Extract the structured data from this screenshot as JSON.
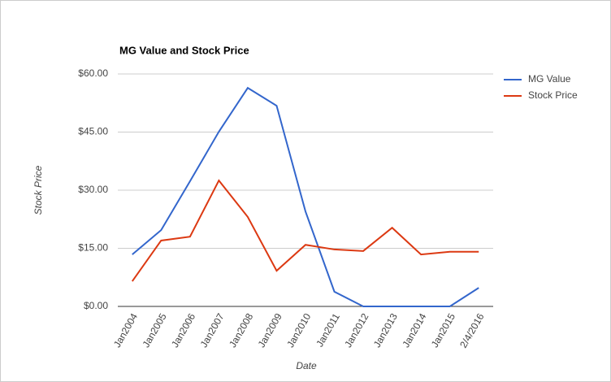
{
  "chart_data": {
    "type": "line",
    "title": "MG Value and Stock Price",
    "x_label": "Date",
    "y_label": "Stock Price",
    "categories": [
      "Jan2004",
      "Jan2005",
      "Jan2006",
      "Jan2007",
      "Jan2008",
      "Jan2009",
      "Jan2010",
      "Jan2011",
      "Jan2012",
      "Jan2013",
      "Jan2014",
      "Jan2015",
      "2/4/2016"
    ],
    "series": [
      {
        "name": "MG Value",
        "color": "#3366cc",
        "values": [
          13.4,
          19.7,
          32.3,
          45.1,
          56.4,
          51.8,
          24.5,
          3.8,
          0,
          0,
          0,
          0,
          4.8
        ]
      },
      {
        "name": "Stock Price",
        "color": "#dc3912",
        "values": [
          6.5,
          17.0,
          18.0,
          32.5,
          23.1,
          9.2,
          15.9,
          14.7,
          14.3,
          20.3,
          13.4,
          14.1,
          14.1
        ]
      }
    ],
    "ylim": [
      0,
      60
    ],
    "yticks": [
      {
        "value": 0,
        "label": "$0.00"
      },
      {
        "value": 15,
        "label": "$15.00"
      },
      {
        "value": 30,
        "label": "$30.00"
      },
      {
        "value": 45,
        "label": "$45.00"
      },
      {
        "value": 60,
        "label": "$60.00"
      }
    ],
    "grid": true,
    "legend": "right"
  }
}
